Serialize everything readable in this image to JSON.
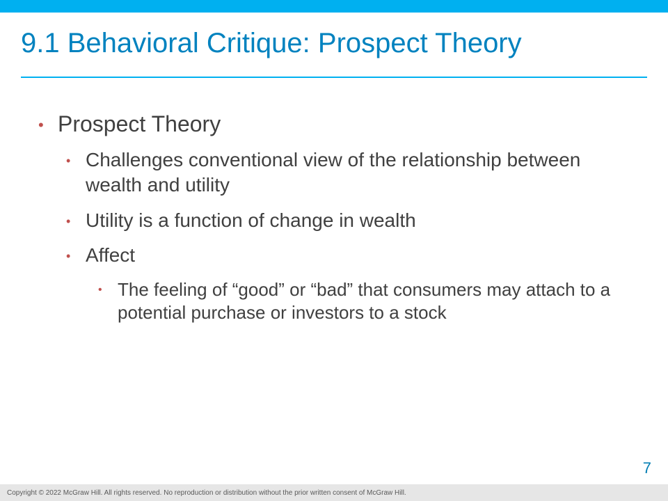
{
  "colors": {
    "accent_bar": "#00b0f0",
    "title": "#0082bf",
    "bullet": "#c0504d",
    "body_text": "#404040",
    "page_num": "#007db3",
    "footer_bg": "#e6e6e6",
    "footer_text": "#595959"
  },
  "title": "9.1 Behavioral Critique: Prospect Theory",
  "bullets": {
    "l1_1": "Prospect Theory",
    "l2_1": "Challenges conventional view of the relationship between wealth and utility",
    "l2_2": "Utility is a function of change in wealth",
    "l2_3": "Affect",
    "l3_1": "The feeling of “good” or “bad” that consumers may attach to a potential purchase or investors to a stock"
  },
  "page_number": "7",
  "copyright": "Copyright © 2022 McGraw Hill. All rights reserved. No reproduction or distribution without the prior written consent of McGraw Hill."
}
